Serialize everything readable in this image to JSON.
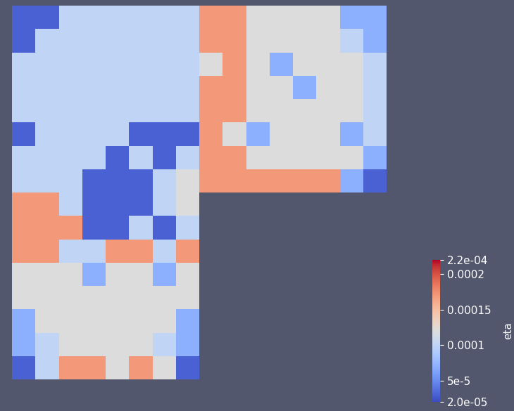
{
  "chart_data": {
    "type": "heatmap",
    "colorbar_label": "eta",
    "tick_labels": false,
    "color": "coolwarm",
    "colorbar_range": [
      2e-05,
      0.00022
    ],
    "colorbar_ticks": [
      {
        "value": 0.00022,
        "label": "2.2e-04"
      },
      0.0002,
      0.00015,
      0.0001,
      {
        "value": 5e-05,
        "label": "5e-5"
      },
      {
        "value": 2e-05,
        "label": "2.0e-05"
      }
    ],
    "cells": [
      [
        3e-05,
        3e-05,
        0.0001,
        0.0001,
        0.0001,
        0.0001,
        0.0001,
        0.0001,
        0.00017,
        0.00017,
        0.00012,
        0.00012,
        0.00012,
        0.00012,
        7e-05,
        7e-05
      ],
      [
        3e-05,
        0.0001,
        0.0001,
        0.0001,
        0.0001,
        0.0001,
        0.0001,
        0.0001,
        0.00017,
        0.00017,
        0.00012,
        0.00012,
        0.00012,
        0.00012,
        0.0001,
        7e-05
      ],
      [
        0.0001,
        0.0001,
        0.0001,
        0.0001,
        0.0001,
        0.0001,
        0.0001,
        0.0001,
        0.00012,
        0.00017,
        0.00012,
        7e-05,
        0.00012,
        0.00012,
        0.00012,
        0.0001
      ],
      [
        0.0001,
        0.0001,
        0.0001,
        0.0001,
        0.0001,
        0.0001,
        0.0001,
        0.0001,
        0.00017,
        0.00017,
        0.00012,
        0.00012,
        7e-05,
        0.00012,
        0.00012,
        0.0001
      ],
      [
        0.0001,
        0.0001,
        0.0001,
        0.0001,
        0.0001,
        0.0001,
        0.0001,
        0.0001,
        0.00017,
        0.00017,
        0.00012,
        0.00012,
        0.00012,
        0.00012,
        0.00012,
        0.0001
      ],
      [
        3e-05,
        0.0001,
        0.0001,
        0.0001,
        0.0001,
        3e-05,
        3e-05,
        3e-05,
        0.00017,
        0.00012,
        7e-05,
        0.00012,
        0.00012,
        0.00012,
        7e-05,
        0.0001
      ],
      [
        0.0001,
        0.0001,
        0.0001,
        0.0001,
        3e-05,
        0.0001,
        3e-05,
        0.0001,
        0.00017,
        0.00017,
        0.00012,
        0.00012,
        0.00012,
        0.00012,
        0.00012,
        7e-05
      ],
      [
        0.0001,
        0.0001,
        0.0001,
        3e-05,
        3e-05,
        3e-05,
        0.0001,
        0.00012,
        0.00017,
        0.00017,
        0.00017,
        0.00017,
        0.00017,
        0.00017,
        7e-05,
        3e-05
      ],
      [
        0.00017,
        0.00017,
        0.0001,
        3e-05,
        3e-05,
        3e-05,
        0.0001,
        0.00012,
        null,
        null,
        null,
        null,
        null,
        null,
        null,
        null
      ],
      [
        0.00017,
        0.00017,
        0.00017,
        3e-05,
        3e-05,
        0.0001,
        3e-05,
        0.0001,
        null,
        null,
        null,
        null,
        null,
        null,
        null,
        null
      ],
      [
        0.00017,
        0.00017,
        0.0001,
        0.0001,
        0.00017,
        0.00017,
        0.0001,
        0.00017,
        null,
        null,
        null,
        null,
        null,
        null,
        null,
        null
      ],
      [
        0.00012,
        0.00012,
        0.00012,
        7e-05,
        0.00012,
        0.00012,
        7e-05,
        0.00012,
        null,
        null,
        null,
        null,
        null,
        null,
        null,
        null
      ],
      [
        0.00012,
        0.00012,
        0.00012,
        0.00012,
        0.00012,
        0.00012,
        0.00012,
        0.00012,
        null,
        null,
        null,
        null,
        null,
        null,
        null,
        null
      ],
      [
        7e-05,
        0.00012,
        0.00012,
        0.00012,
        0.00012,
        0.00012,
        0.00012,
        7e-05,
        null,
        null,
        null,
        null,
        null,
        null,
        null,
        null
      ],
      [
        7e-05,
        0.0001,
        0.00012,
        0.00012,
        0.00012,
        0.00012,
        0.0001,
        7e-05,
        null,
        null,
        null,
        null,
        null,
        null,
        null,
        null
      ],
      [
        3e-05,
        0.0001,
        0.00017,
        0.00017,
        0.00012,
        0.00017,
        0.00012,
        3e-05,
        null,
        null,
        null,
        null,
        null,
        null,
        null,
        null
      ]
    ]
  }
}
